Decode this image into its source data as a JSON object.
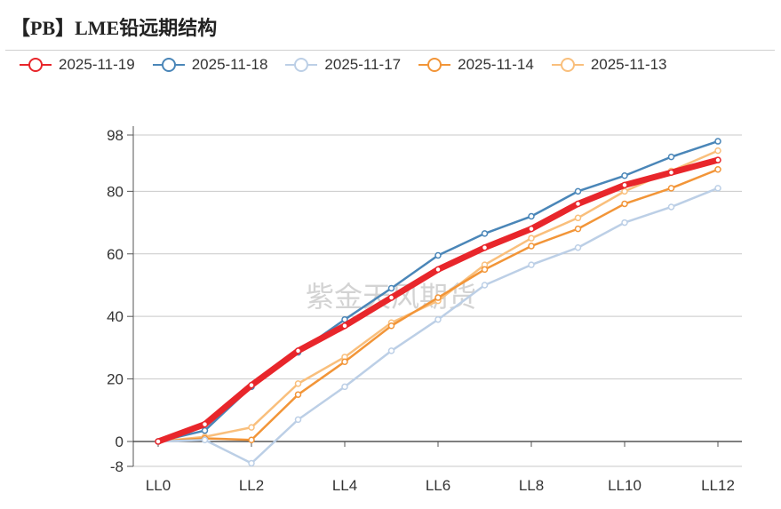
{
  "chart_data": {
    "type": "line",
    "title": "【PB】LME铅远期结构",
    "watermark": "紫金天风期货",
    "categories": [
      "LL0",
      "LL1",
      "LL2",
      "LL3",
      "LL4",
      "LL5",
      "LL6",
      "LL7",
      "LL8",
      "LL9",
      "LL10",
      "LL11",
      "LL12"
    ],
    "x_tick_labels": [
      "LL0",
      "LL2",
      "LL4",
      "LL6",
      "LL8",
      "LL10",
      "LL12"
    ],
    "y_ticks": [
      -8,
      0,
      20,
      40,
      60,
      80,
      98
    ],
    "ylim": [
      -8,
      98
    ],
    "xlabel": "",
    "ylabel": "",
    "legend_position": "top",
    "grid": true,
    "series": [
      {
        "name": "2025-11-19",
        "color": "#e8262b",
        "thick": true,
        "values": [
          0,
          5.5,
          18,
          29,
          37,
          46,
          55,
          62,
          68,
          76,
          82,
          86,
          90
        ]
      },
      {
        "name": "2025-11-18",
        "color": "#4a86b8",
        "values": [
          0,
          3.5,
          17.5,
          28.5,
          39,
          49,
          59.5,
          66.5,
          72,
          80,
          85,
          91,
          96
        ]
      },
      {
        "name": "2025-11-17",
        "color": "#bccfe6",
        "values": [
          0,
          0.5,
          -7,
          7,
          17.5,
          29,
          39,
          50,
          56.5,
          62,
          70,
          75,
          81
        ]
      },
      {
        "name": "2025-11-14",
        "color": "#f29538",
        "values": [
          0,
          1,
          0.5,
          15,
          25.5,
          37,
          46,
          55,
          62.5,
          68,
          76,
          81,
          87
        ]
      },
      {
        "name": "2025-11-13",
        "color": "#f9bf7c",
        "values": [
          0,
          1.5,
          4.5,
          18.5,
          27,
          38,
          45,
          56.5,
          65,
          71.5,
          80,
          86.5,
          93
        ]
      }
    ]
  }
}
